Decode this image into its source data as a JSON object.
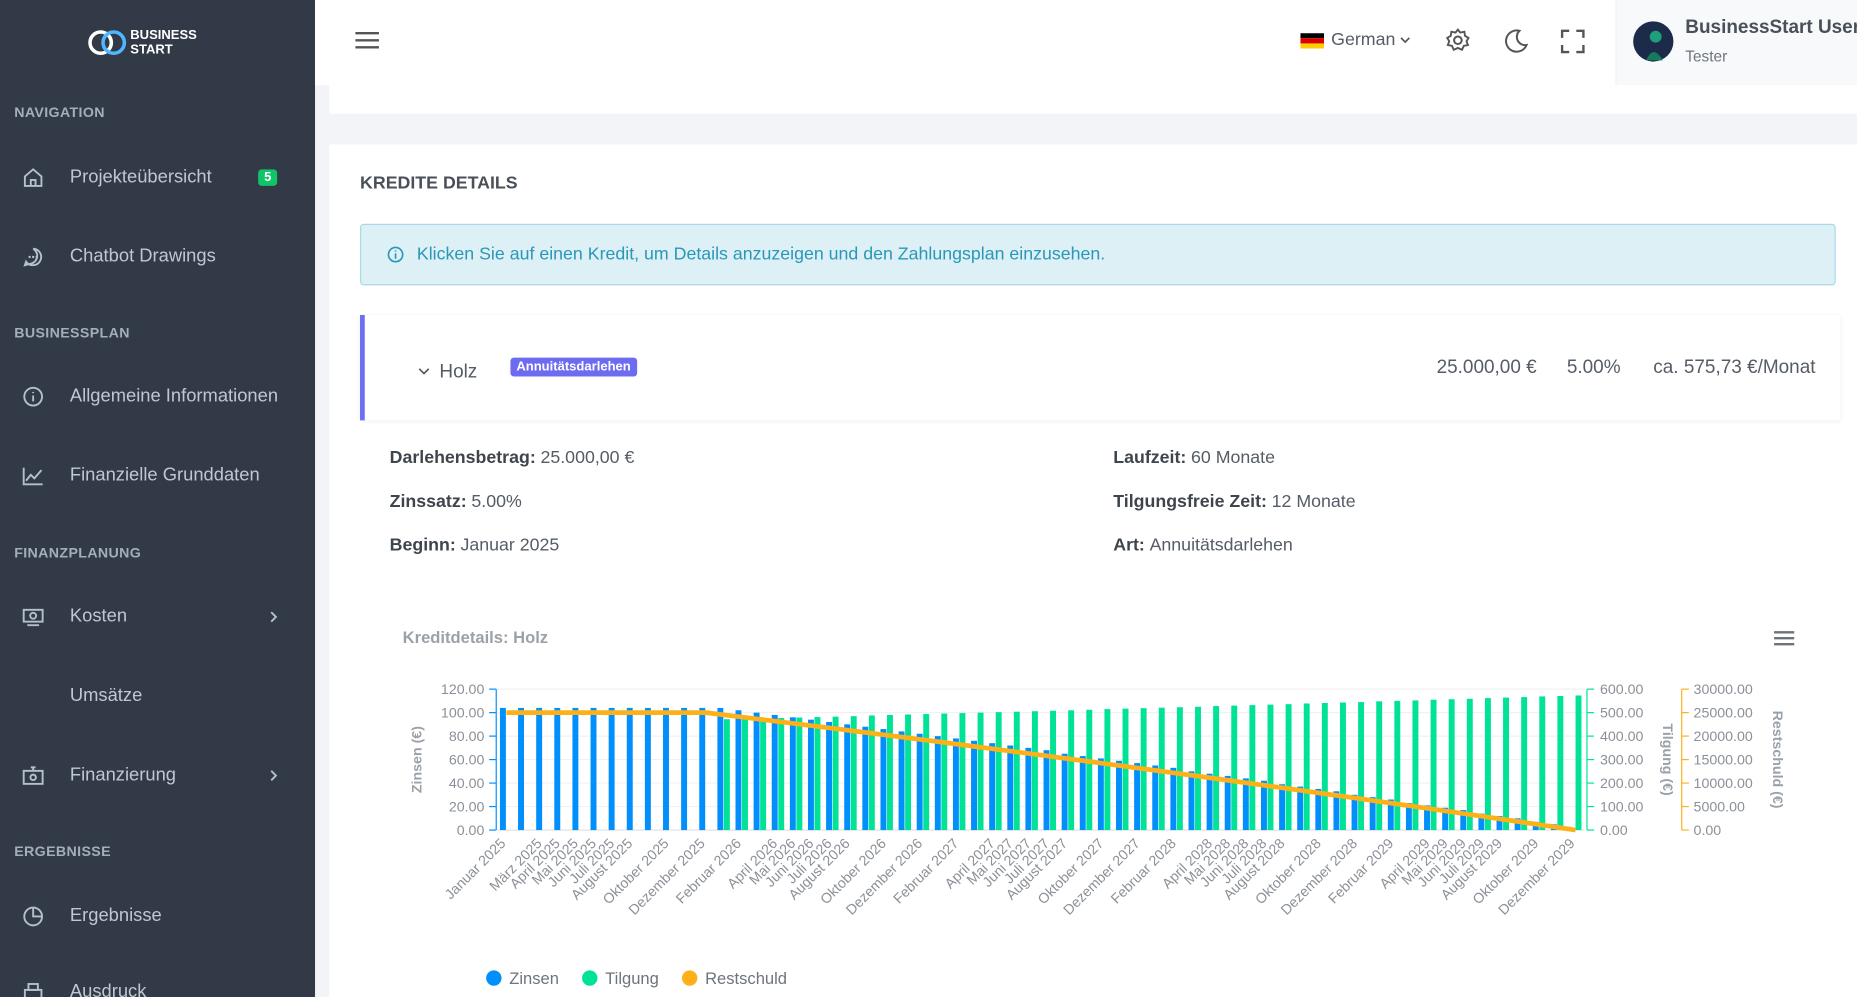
{
  "sidebar": {
    "logo": [
      "BUSINESS",
      "START"
    ],
    "sections": [
      {
        "title": "NAVIGATION",
        "items": [
          {
            "label": "Projekteübersicht",
            "badge": 5
          },
          {
            "label": "Chatbot Drawings"
          }
        ]
      },
      {
        "title": "BUSINESSPLAN",
        "items": [
          {
            "label": "Allgemeine Informationen"
          },
          {
            "label": "Finanzielle Grunddaten"
          }
        ]
      },
      {
        "title": "FINANZPLANUNG",
        "items": [
          {
            "label": "Kosten"
          },
          {
            "label": "Umsätze"
          },
          {
            "label": "Finanzierung"
          }
        ]
      },
      {
        "title": "ERGEBNISSE",
        "items": [
          {
            "label": "Ergebnisse"
          },
          {
            "label": "Ausdruck"
          }
        ]
      }
    ]
  },
  "header": {
    "language": "German",
    "user_name": "BusinessStart User",
    "user_role": "Tester"
  },
  "page": {
    "title": "KREDITE DETAILS",
    "alert": "Klicken Sie auf einen Kredit, um Details anzuzeigen und den Zahlungsplan einzusehen.",
    "loan": {
      "name": "Holz",
      "badge": "Annuitätsdarlehen",
      "amount": "25.000,00 €",
      "rate": "5.00%",
      "monthly": "ca. 575,73 €/Monat",
      "details": [
        {
          "label": "Darlehensbetrag:",
          "value": "25.000,00 €"
        },
        {
          "label": "Laufzeit:",
          "value": "60 Monate"
        },
        {
          "label": "Zinssatz:",
          "value": "5.00%"
        },
        {
          "label": "Tilgungsfreie Zeit:",
          "value": "12 Monate"
        },
        {
          "label": "Beginn:",
          "value": "Januar 2025"
        },
        {
          "label": "Art:",
          "value": "Annuitätsdarlehen"
        }
      ]
    }
  },
  "chart_data": {
    "type": "bar_line",
    "title": "Kreditdetails: Holz",
    "grid": true,
    "legend": "bottom-left",
    "categories": [
      "Januar 2025",
      null,
      "März 2025",
      "April 2025",
      "Mai 2025",
      "Juni 2025",
      "Juli 2025",
      "August 2025",
      null,
      "Oktober 2025",
      null,
      "Dezember 2025",
      null,
      "Februar 2026",
      null,
      "April 2026",
      "Mai 2026",
      "Juni 2026",
      "Juli 2026",
      "August 2026",
      null,
      "Oktober 2026",
      null,
      "Dezember 2026",
      null,
      "Februar 2027",
      null,
      "April 2027",
      "Mai 2027",
      "Juni 2027",
      "Juli 2027",
      "August 2027",
      null,
      "Oktober 2027",
      null,
      "Dezember 2027",
      null,
      "Februar 2028",
      null,
      "April 2028",
      "Mai 2028",
      "Juni 2028",
      "Juli 2028",
      "August 2028",
      null,
      "Oktober 2028",
      null,
      "Dezember 2028",
      null,
      "Februar 2029",
      null,
      "April 2029",
      "Mai 2029",
      "Juni 2029",
      "Juli 2029",
      "August 2029",
      null,
      "Oktober 2029",
      null,
      "Dezember 2029"
    ],
    "ylabel": "Zinsen (€)",
    "y2label": "Tilgung (€)",
    "y3label": "Restschuld (€)",
    "ylim": [
      0,
      120
    ],
    "yticks": [
      {
        "value": 0,
        "label": "0.00"
      },
      {
        "value": 20,
        "label": "20.00"
      },
      {
        "value": 40,
        "label": "40.00"
      },
      {
        "value": 60,
        "label": "60.00"
      },
      {
        "value": 80,
        "label": "80.00"
      },
      {
        "value": 100,
        "label": "100.00"
      },
      {
        "value": 120,
        "label": "120.00"
      }
    ],
    "y2lim": [
      0,
      600
    ],
    "y2ticks": [
      {
        "value": 0,
        "label": "0.00"
      },
      {
        "value": 100,
        "label": "100.00"
      },
      {
        "value": 200,
        "label": "200.00"
      },
      {
        "value": 300,
        "label": "300.00"
      },
      {
        "value": 400,
        "label": "400.00"
      },
      {
        "value": 500,
        "label": "500.00"
      },
      {
        "value": 600,
        "label": "600.00"
      }
    ],
    "y3lim": [
      0,
      30000
    ],
    "y3ticks": [
      {
        "value": 0,
        "label": "0.00"
      },
      {
        "value": 5000,
        "label": "5000.00"
      },
      {
        "value": 10000,
        "label": "10000.00"
      },
      {
        "value": 15000,
        "label": "15000.00"
      },
      {
        "value": 20000,
        "label": "20000.00"
      },
      {
        "value": 25000,
        "label": "25000.00"
      },
      {
        "value": 30000,
        "label": "30000.00"
      }
    ],
    "series": [
      {
        "name": "Zinsen",
        "type": "bar",
        "axis": "y",
        "color": "#008ffb",
        "values": [
          104,
          104,
          104,
          104,
          104,
          104,
          104,
          104,
          104,
          104,
          104,
          104,
          104,
          102,
          100,
          98,
          96,
          94,
          92,
          90,
          88,
          86,
          84,
          82,
          80,
          78,
          76,
          74,
          72,
          70,
          68,
          65,
          63,
          61,
          59,
          57,
          55,
          53,
          50,
          48,
          46,
          44,
          42,
          39,
          37,
          35,
          33,
          30,
          28,
          26,
          23,
          21,
          19,
          17,
          14,
          12,
          10,
          7,
          5,
          2
        ]
      },
      {
        "name": "Tilgung",
        "type": "bar",
        "axis": "y2",
        "color": "#00e396",
        "values": [
          0,
          0,
          0,
          0,
          0,
          0,
          0,
          0,
          0,
          0,
          0,
          0,
          472,
          474,
          476,
          477,
          479,
          481,
          483,
          485,
          488,
          490,
          492,
          494,
          496,
          498,
          500,
          502,
          504,
          506,
          508,
          510,
          512,
          515,
          517,
          519,
          521,
          523,
          525,
          528,
          530,
          532,
          534,
          536,
          539,
          541,
          543,
          545,
          548,
          550,
          552,
          555,
          557,
          559,
          562,
          564,
          566,
          569,
          571,
          573
        ]
      },
      {
        "name": "Restschuld",
        "type": "line",
        "axis": "y3",
        "color": "#feb019",
        "values": [
          25000,
          25000,
          25000,
          25000,
          25000,
          25000,
          25000,
          25000,
          25000,
          25000,
          25000,
          25000,
          24528,
          24054,
          23578,
          23101,
          22622,
          22141,
          21658,
          21173,
          20685,
          20195,
          19703,
          19209,
          18713,
          18215,
          17715,
          17213,
          16709,
          16203,
          15695,
          15185,
          14673,
          14158,
          13641,
          13122,
          12601,
          12078,
          11553,
          11025,
          10495,
          9963,
          9429,
          8893,
          8354,
          7813,
          7270,
          6725,
          6177,
          5627,
          5075,
          4520,
          3963,
          3404,
          2842,
          2278,
          1712,
          1143,
          572,
          0
        ]
      }
    ]
  }
}
